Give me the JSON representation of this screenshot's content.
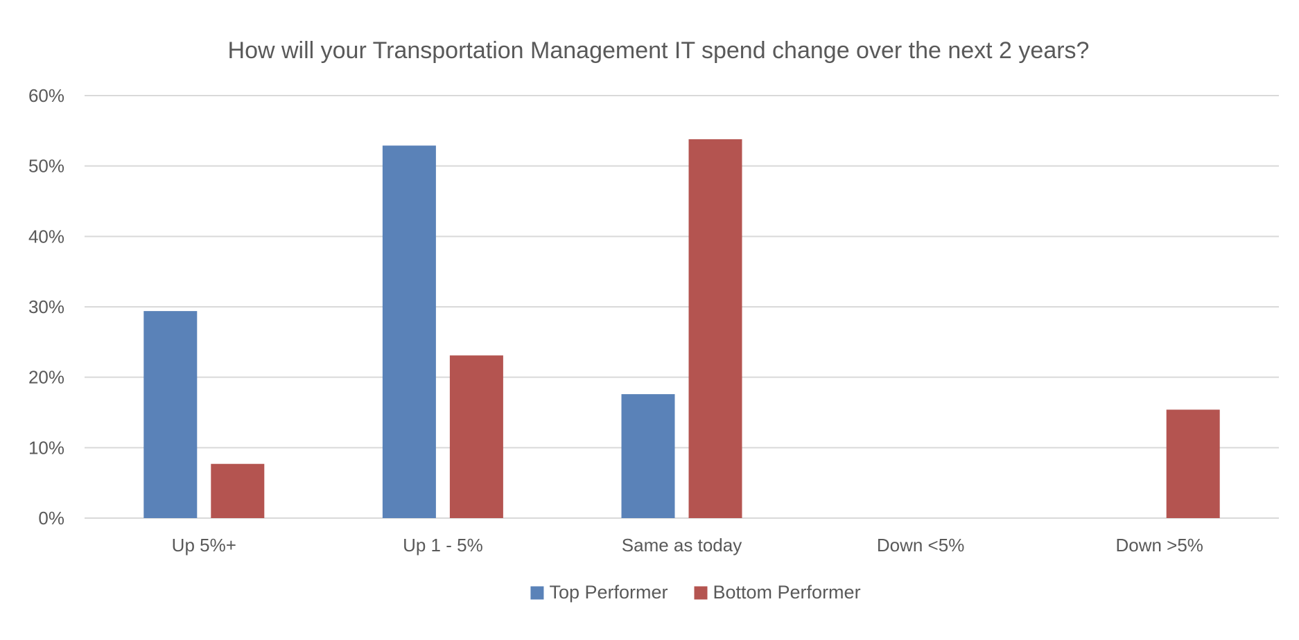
{
  "chart_data": {
    "type": "bar",
    "title": "How will your Transportation Management IT spend change over the next 2 years?",
    "xlabel": "",
    "ylabel": "",
    "categories": [
      "Up 5%+",
      "Up 1 - 5%",
      "Same as today",
      "Down <5%",
      "Down >5%"
    ],
    "series": [
      {
        "name": "Top Performer",
        "color": "#5a82b8",
        "values": [
          29.4,
          52.9,
          17.6,
          0,
          0
        ]
      },
      {
        "name": "Bottom Performer",
        "color": "#b45450",
        "values": [
          7.7,
          23.1,
          53.8,
          0,
          15.4
        ]
      }
    ],
    "ylim": [
      0,
      60
    ],
    "yticks": [
      "0%",
      "10%",
      "20%",
      "30%",
      "40%",
      "50%",
      "60%"
    ],
    "grid": true,
    "legend_position": "bottom"
  }
}
